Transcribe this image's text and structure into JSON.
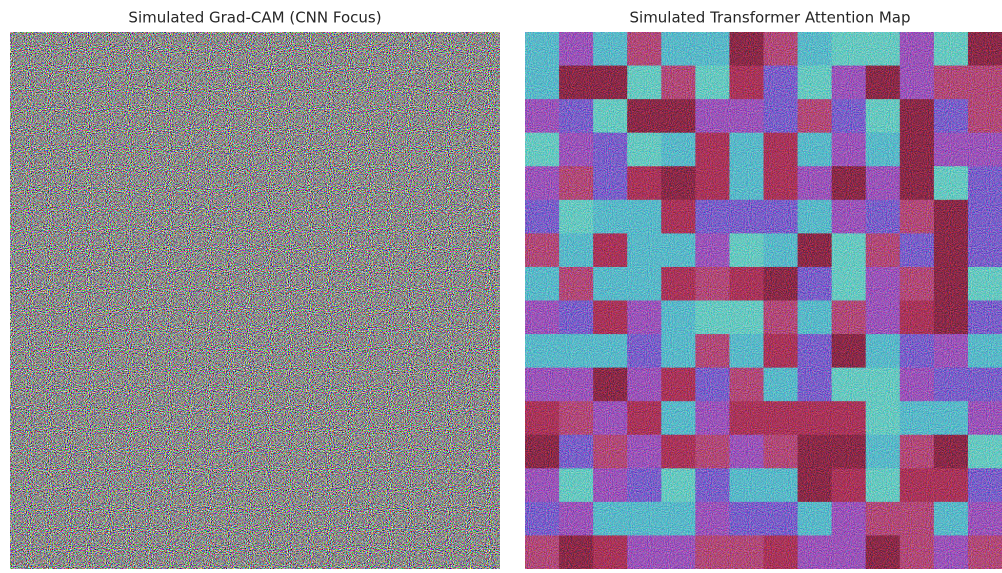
{
  "panels": [
    {
      "title": "Simulated Grad-CAM (CNN Focus)"
    },
    {
      "title": "Simulated Transformer Attention Map"
    }
  ]
}
